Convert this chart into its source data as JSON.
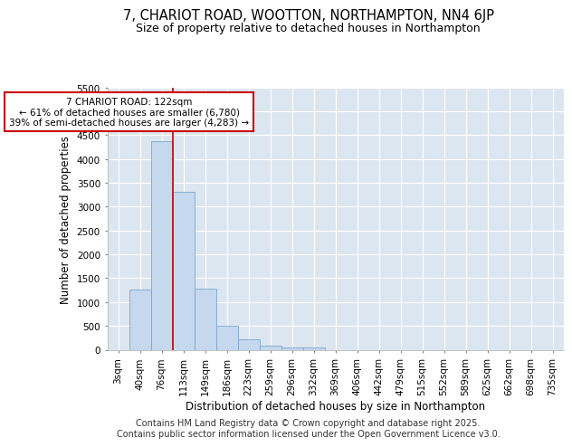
{
  "title_line1": "7, CHARIOT ROAD, WOOTTON, NORTHAMPTON, NN4 6JP",
  "title_line2": "Size of property relative to detached houses in Northampton",
  "xlabel": "Distribution of detached houses by size in Northampton",
  "ylabel": "Number of detached properties",
  "categories": [
    "3sqm",
    "40sqm",
    "76sqm",
    "113sqm",
    "149sqm",
    "186sqm",
    "223sqm",
    "259sqm",
    "296sqm",
    "332sqm",
    "369sqm",
    "406sqm",
    "442sqm",
    "479sqm",
    "515sqm",
    "552sqm",
    "589sqm",
    "625sqm",
    "662sqm",
    "698sqm",
    "735sqm"
  ],
  "values": [
    0,
    1270,
    4380,
    3310,
    1280,
    500,
    220,
    80,
    55,
    55,
    0,
    0,
    0,
    0,
    0,
    0,
    0,
    0,
    0,
    0,
    0
  ],
  "bar_color": "#c5d8ed",
  "bar_edge_color": "#7ba7d0",
  "background_color": "#dce6f1",
  "grid_color": "#ffffff",
  "annotation_text": "7 CHARIOT ROAD: 122sqm\n← 61% of detached houses are smaller (6,780)\n39% of semi-detached houses are larger (4,283) →",
  "annotation_box_facecolor": "#ffffff",
  "annotation_border_color": "#cc0000",
  "vline_color": "#cc0000",
  "vline_x_idx": 3,
  "ylim": [
    0,
    5500
  ],
  "yticks": [
    0,
    500,
    1000,
    1500,
    2000,
    2500,
    3000,
    3500,
    4000,
    4500,
    5000,
    5500
  ],
  "footer_line1": "Contains HM Land Registry data © Crown copyright and database right 2025.",
  "footer_line2": "Contains public sector information licensed under the Open Government Licence v3.0.",
  "title_fontsize": 10.5,
  "subtitle_fontsize": 9,
  "axis_label_fontsize": 8.5,
  "tick_fontsize": 7.5,
  "footer_fontsize": 7,
  "annot_fontsize": 7.5
}
